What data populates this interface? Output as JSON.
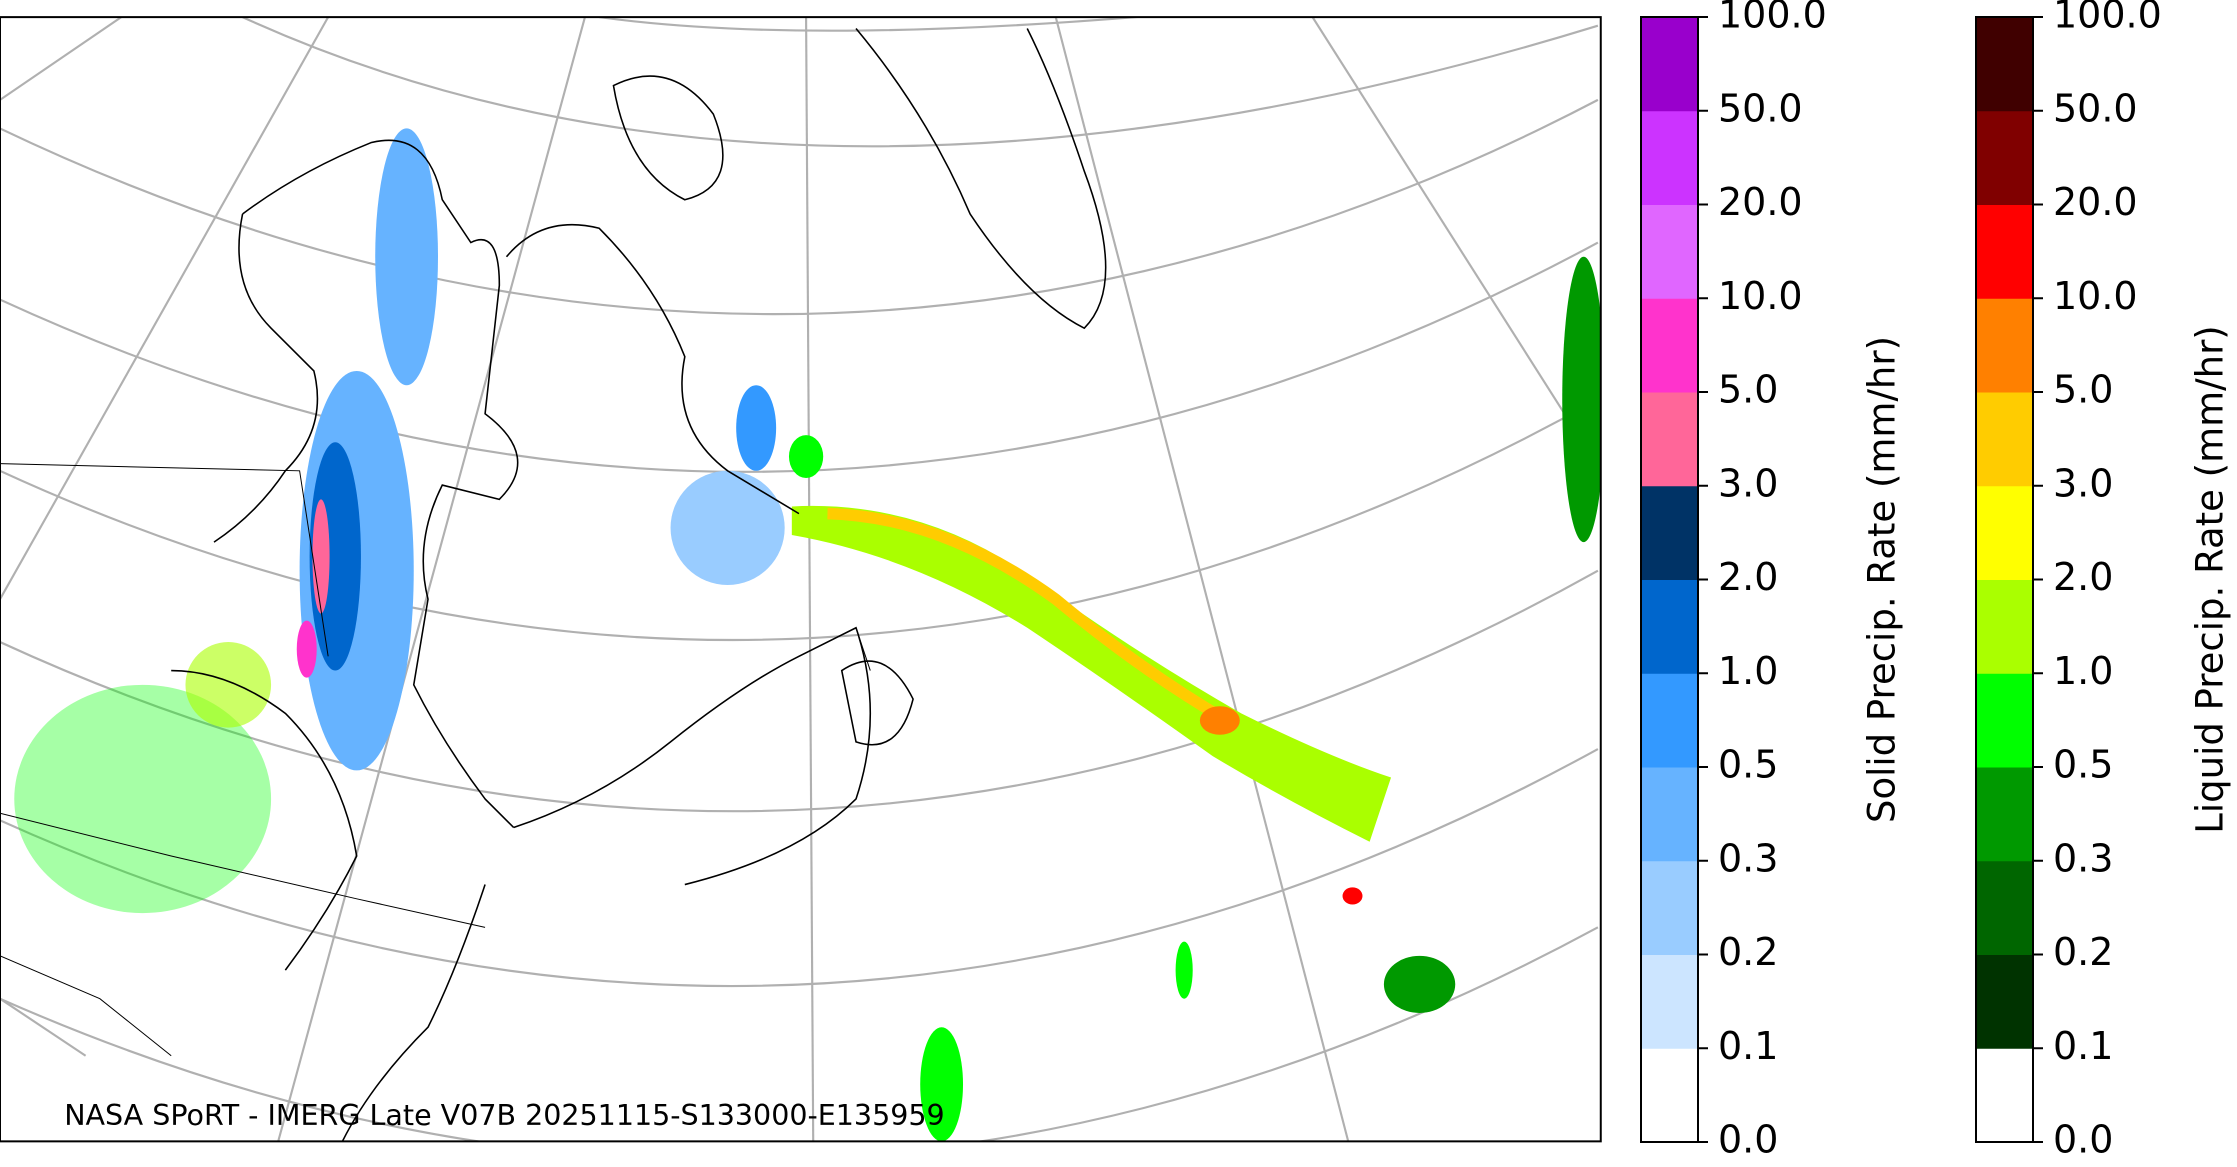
{
  "map": {
    "credit": "NASA SPoRT - IMERG Late V07B 20251115-S133000-E135959"
  },
  "colorbars": [
    {
      "label": "Solid Precip. Rate (mm/hr)",
      "ticks": [
        "0.0",
        "0.1",
        "0.2",
        "0.3",
        "0.5",
        "1.0",
        "2.0",
        "3.0",
        "5.0",
        "10.0",
        "20.0",
        "50.0",
        "100.0"
      ],
      "colors": [
        "#ffffff",
        "#cce5ff",
        "#99ccff",
        "#66b3ff",
        "#3399ff",
        "#0066cc",
        "#003366",
        "#ff6699",
        "#ff33cc",
        "#e066ff",
        "#cc33ff",
        "#9900cc"
      ]
    },
    {
      "label": "Liquid Precip. Rate (mm/hr)",
      "ticks": [
        "0.0",
        "0.1",
        "0.2",
        "0.3",
        "0.5",
        "1.0",
        "2.0",
        "3.0",
        "5.0",
        "10.0",
        "20.0",
        "50.0",
        "100.0"
      ],
      "colors": [
        "#ffffff",
        "#003300",
        "#006600",
        "#009900",
        "#00ff00",
        "#aaff00",
        "#ffff00",
        "#ffcc00",
        "#ff8000",
        "#ff0000",
        "#800000",
        "#400000"
      ]
    }
  ]
}
